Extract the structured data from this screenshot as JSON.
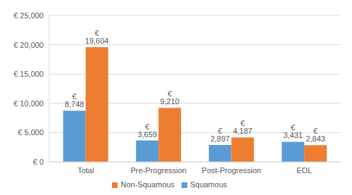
{
  "chart_data": {
    "type": "bar",
    "categories": [
      "Total",
      "Pre-Progression",
      "Post-Progression",
      "EOL"
    ],
    "series": [
      {
        "name": "Squamous",
        "color": "#5b9bd5",
        "values": [
          8748,
          3659,
          2897,
          3431
        ],
        "value_labels": [
          "€ 8,748",
          "€ 3,659",
          "€ 2,897",
          "€ 3,431"
        ]
      },
      {
        "name": "Non-Squamous",
        "color": "#ed7d31",
        "values": [
          19604,
          9210,
          4187,
          2843
        ],
        "value_labels": [
          "€ 19,604",
          "€ 9,210",
          "€ 4,187",
          "€ 2,843"
        ]
      }
    ],
    "ylim": [
      0,
      25000
    ],
    "yticks": [
      {
        "value": 0,
        "label": "€ 0"
      },
      {
        "value": 5000,
        "label": "€ 5,000"
      },
      {
        "value": 10000,
        "label": "€ 10,000"
      },
      {
        "value": 15000,
        "label": "€ 15,000"
      },
      {
        "value": 20000,
        "label": "€ 20,000"
      },
      {
        "value": 25000,
        "label": "€ 25,000"
      }
    ],
    "grid": true,
    "legend": "bottom",
    "data_labels": true
  }
}
